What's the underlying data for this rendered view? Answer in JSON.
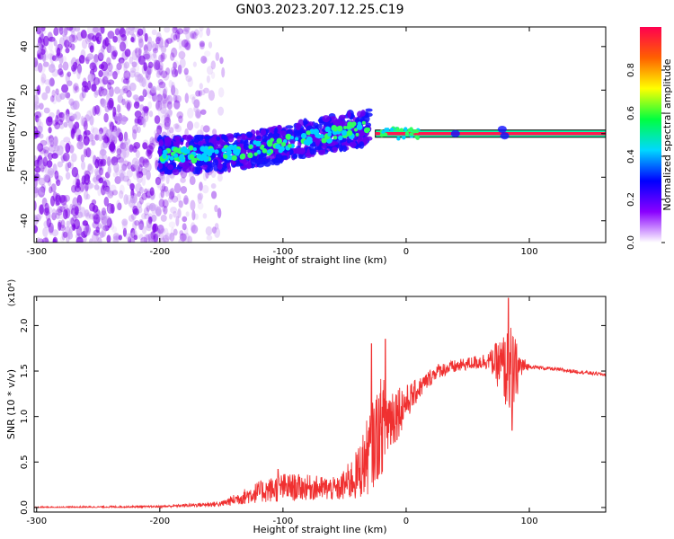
{
  "title": "GN03.2023.207.12.25.C19",
  "colors": {
    "snr_line": "#f03030",
    "plot_bg": "#ffffff",
    "axis": "#000000"
  },
  "chart_data": [
    {
      "type": "heatmap",
      "xlabel": "Height of straight line (km)",
      "ylabel": "Frequency (Hz)",
      "xlim": [
        -302,
        162
      ],
      "ylim": [
        -50,
        49
      ],
      "xticks": [
        -300,
        -200,
        -100,
        0,
        100
      ],
      "yticks": [
        -40,
        -20,
        0,
        20,
        40
      ],
      "colorbar": {
        "label": "Normalized spectral amplitude",
        "range": [
          0.0,
          1.0
        ],
        "ticks": [
          "0.0",
          "0.2",
          "0.4",
          "0.6",
          "0.8"
        ],
        "stops": [
          "#ffffff",
          "#8a00ff",
          "#0000ff",
          "#00d8ff",
          "#00ff40",
          "#ffff00",
          "#ff6000",
          "#ff0050"
        ]
      },
      "features": {
        "noise_region_x": [
          -302,
          -160
        ],
        "drift_band": [
          {
            "x": -200,
            "y": -10
          },
          {
            "x": -150,
            "y": -9
          },
          {
            "x": -110,
            "y": -6
          },
          {
            "x": -80,
            "y": -2
          },
          {
            "x": -60,
            "y": 0
          },
          {
            "x": -40,
            "y": 2
          },
          {
            "x": -30,
            "y": 3
          }
        ],
        "carrier_line": {
          "x_start": -25,
          "x_end": 162,
          "freq": 0
        }
      }
    },
    {
      "type": "line",
      "xlabel": "Height of straight line (km)",
      "ylabel": "SNR (10 * v/v)",
      "y_multiplier": "(x10⁴)",
      "xlim": [
        -302,
        162
      ],
      "ylim": [
        -0.05,
        2.32
      ],
      "xticks": [
        -300,
        -200,
        -100,
        0,
        100
      ],
      "yticks": [
        "0.0",
        "0.5",
        "1.0",
        "1.5",
        "2.0"
      ],
      "series": [
        {
          "envelope": [
            {
              "x": -302,
              "mean": 0.0,
              "spread": 0.01
            },
            {
              "x": -200,
              "mean": 0.01,
              "spread": 0.01
            },
            {
              "x": -150,
              "mean": 0.04,
              "spread": 0.03
            },
            {
              "x": -120,
              "mean": 0.17,
              "spread": 0.12
            },
            {
              "x": -100,
              "mean": 0.22,
              "spread": 0.16
            },
            {
              "x": -80,
              "mean": 0.22,
              "spread": 0.14
            },
            {
              "x": -55,
              "mean": 0.2,
              "spread": 0.13
            },
            {
              "x": -40,
              "mean": 0.35,
              "spread": 0.28
            },
            {
              "x": -30,
              "mean": 0.6,
              "spread": 0.45
            },
            {
              "x": -20,
              "mean": 0.9,
              "spread": 0.55
            },
            {
              "x": -12,
              "mean": 1.0,
              "spread": 0.4
            },
            {
              "x": 0,
              "mean": 1.15,
              "spread": 0.2
            },
            {
              "x": 10,
              "mean": 1.3,
              "spread": 0.12
            },
            {
              "x": 25,
              "mean": 1.5,
              "spread": 0.08
            },
            {
              "x": 50,
              "mean": 1.58,
              "spread": 0.07
            },
            {
              "x": 68,
              "mean": 1.62,
              "spread": 0.1
            },
            {
              "x": 78,
              "mean": 1.55,
              "spread": 0.35
            },
            {
              "x": 85,
              "mean": 1.45,
              "spread": 0.55
            },
            {
              "x": 93,
              "mean": 1.55,
              "spread": 0.15
            },
            {
              "x": 100,
              "mean": 1.55,
              "spread": 0.02
            },
            {
              "x": 162,
              "mean": 1.46,
              "spread": 0.02
            }
          ],
          "peaks": [
            {
              "x": -104,
              "y": 0.42
            },
            {
              "x": -28,
              "y": 1.8
            },
            {
              "x": -17,
              "y": 1.85
            },
            {
              "x": 83,
              "y": 2.3
            },
            {
              "x": 86,
              "y": 0.85
            }
          ]
        }
      ]
    }
  ]
}
